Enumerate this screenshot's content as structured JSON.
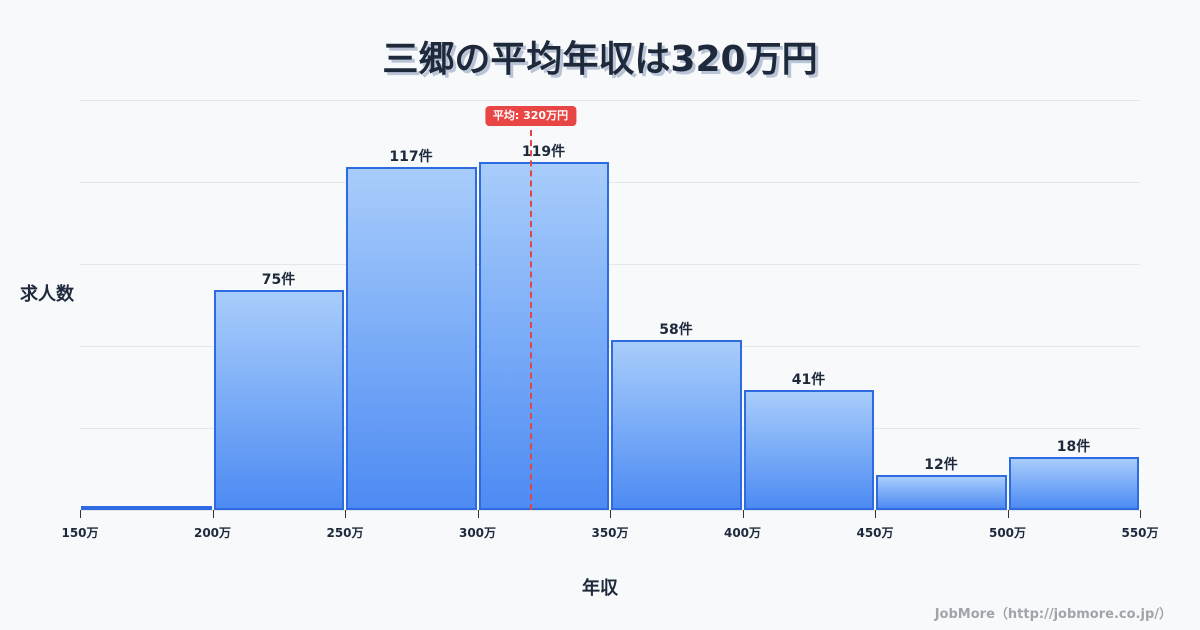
{
  "title": "三郷の平均年収は320万円",
  "y_axis_label": "求人数",
  "x_axis_label": "年収",
  "credit": "JobMore（http://jobmore.co.jp/）",
  "mean_badge": "平均: 320万円",
  "colors": {
    "bar_fill_top": "#a8cdfb",
    "bar_fill_bottom": "#4d8bf3",
    "bar_border": "#2f6be0",
    "mean_line": "#e14646",
    "badge_bg": "#e84545",
    "background": "#f8f9fb",
    "title": "#1e293b"
  },
  "chart_data": {
    "type": "bar",
    "title": "三郷の平均年収は320万円",
    "xlabel": "年収",
    "ylabel": "求人数",
    "bins": [
      {
        "range": "150万-200万",
        "label": "",
        "value": 1
      },
      {
        "range": "200万-250万",
        "label": "75件",
        "value": 75
      },
      {
        "range": "250万-300万",
        "label": "117件",
        "value": 117
      },
      {
        "range": "300万-350万",
        "label": "119件",
        "value": 119
      },
      {
        "range": "350万-400万",
        "label": "58件",
        "value": 58
      },
      {
        "range": "400万-450万",
        "label": "41件",
        "value": 41
      },
      {
        "range": "450万-500万",
        "label": "12件",
        "value": 12
      },
      {
        "range": "500万-550万",
        "label": "18件",
        "value": 18
      }
    ],
    "categories": [
      "150万-200万",
      "200万-250万",
      "250万-300万",
      "300万-350万",
      "350万-400万",
      "400万-450万",
      "450万-500万",
      "500万-550万"
    ],
    "values": [
      1,
      75,
      117,
      119,
      58,
      41,
      12,
      18
    ],
    "x_ticks": [
      "150万",
      "200万",
      "250万",
      "300万",
      "350万",
      "400万",
      "450万",
      "500万",
      "550万"
    ],
    "xlim": [
      150,
      550
    ],
    "ylim": [
      0,
      140
    ],
    "grid": true,
    "mean": 320,
    "mean_label": "平均: 320万円",
    "legend": null
  }
}
